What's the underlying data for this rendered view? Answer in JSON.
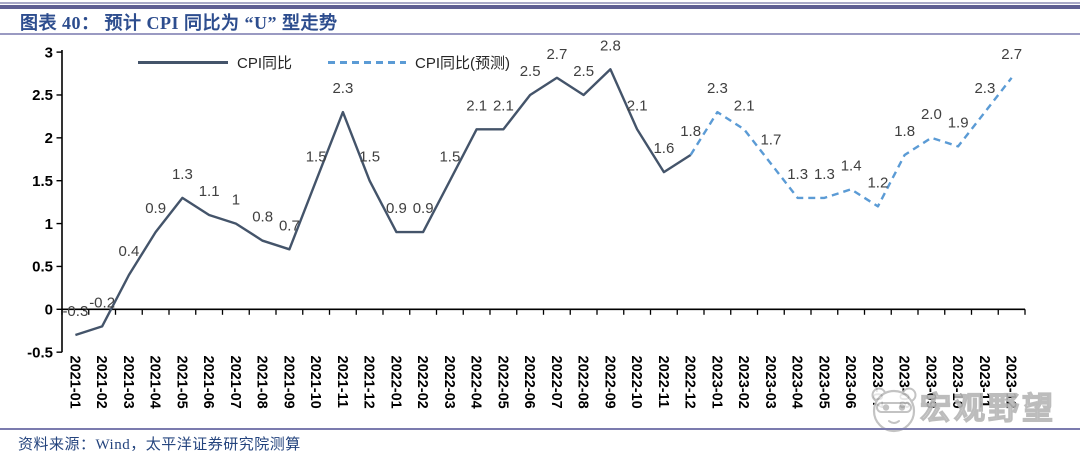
{
  "header": {
    "title": "图表 40： 预计 CPI 同比为 “U” 型走势"
  },
  "legend": [
    {
      "label": "CPI同比",
      "style": "solid",
      "color": "#44546A"
    },
    {
      "label": "CPI同比(预测)",
      "style": "dashed",
      "color": "#5B9BD5"
    }
  ],
  "chart_data": {
    "type": "line",
    "title": "预计CPI同比为“U”型走势",
    "categories": [
      "2021-01",
      "2021-02",
      "2021-03",
      "2021-04",
      "2021-05",
      "2021-06",
      "2021-07",
      "2021-08",
      "2021-09",
      "2021-10",
      "2021-11",
      "2021-12",
      "2022-01",
      "2022-02",
      "2022-03",
      "2022-04",
      "2022-05",
      "2022-06",
      "2022-07",
      "2022-08",
      "2022-09",
      "2022-10",
      "2022-11",
      "2022-12",
      "2023-01",
      "2023-02",
      "2023-03",
      "2023-04",
      "2023-05",
      "2023-06",
      "2023-07",
      "2023-08",
      "2023-09",
      "2023-10",
      "2023-11",
      "2023-12"
    ],
    "series": [
      {
        "name": "CPI同比",
        "style": "solid",
        "color": "#44546A",
        "start_index": 0,
        "values": [
          -0.3,
          -0.2,
          0.4,
          0.9,
          1.3,
          1.1,
          1.0,
          0.8,
          0.7,
          1.5,
          2.3,
          1.5,
          0.9,
          0.9,
          1.5,
          2.1,
          2.1,
          2.5,
          2.7,
          2.5,
          2.8,
          2.1,
          1.6,
          1.8
        ]
      },
      {
        "name": "CPI同比(预测)",
        "style": "dashed",
        "color": "#5B9BD5",
        "start_index": 23,
        "values": [
          1.8,
          2.3,
          2.1,
          1.7,
          1.3,
          1.3,
          1.4,
          1.2,
          1.8,
          2.0,
          1.9,
          2.3,
          2.7
        ]
      }
    ],
    "point_labels": [
      "-0.3",
      "-0.2",
      "0.4",
      "0.9",
      "1.3",
      "1.1",
      "1",
      "0.8",
      "0.7",
      "1.5",
      "2.3",
      "1.5",
      "0.9",
      "0.9",
      "1.5",
      "2.1",
      "2.1",
      "2.5",
      "2.7",
      "2.5",
      "2.8",
      "2.1",
      "1.6",
      "1.8",
      "2.3",
      "2.1",
      "1.7",
      "1.3",
      "1.3",
      "1.4",
      "1.2",
      "1.8",
      "2.0",
      "1.9",
      "2.3",
      "2.7"
    ],
    "ylim": [
      -0.5,
      3
    ],
    "ytick_labels": [
      "3",
      "2.5",
      "2",
      "1.5",
      "1",
      "0.5",
      "0",
      "-0.5"
    ],
    "grid": "off",
    "legend_position": "top",
    "label_color": "#404040",
    "axis_color": "#000000"
  },
  "footer": {
    "source": "资料来源：Wind，太平洋证券研究院测算"
  },
  "watermark": {
    "text": "宏观野望",
    "logo": "panda-icon"
  }
}
